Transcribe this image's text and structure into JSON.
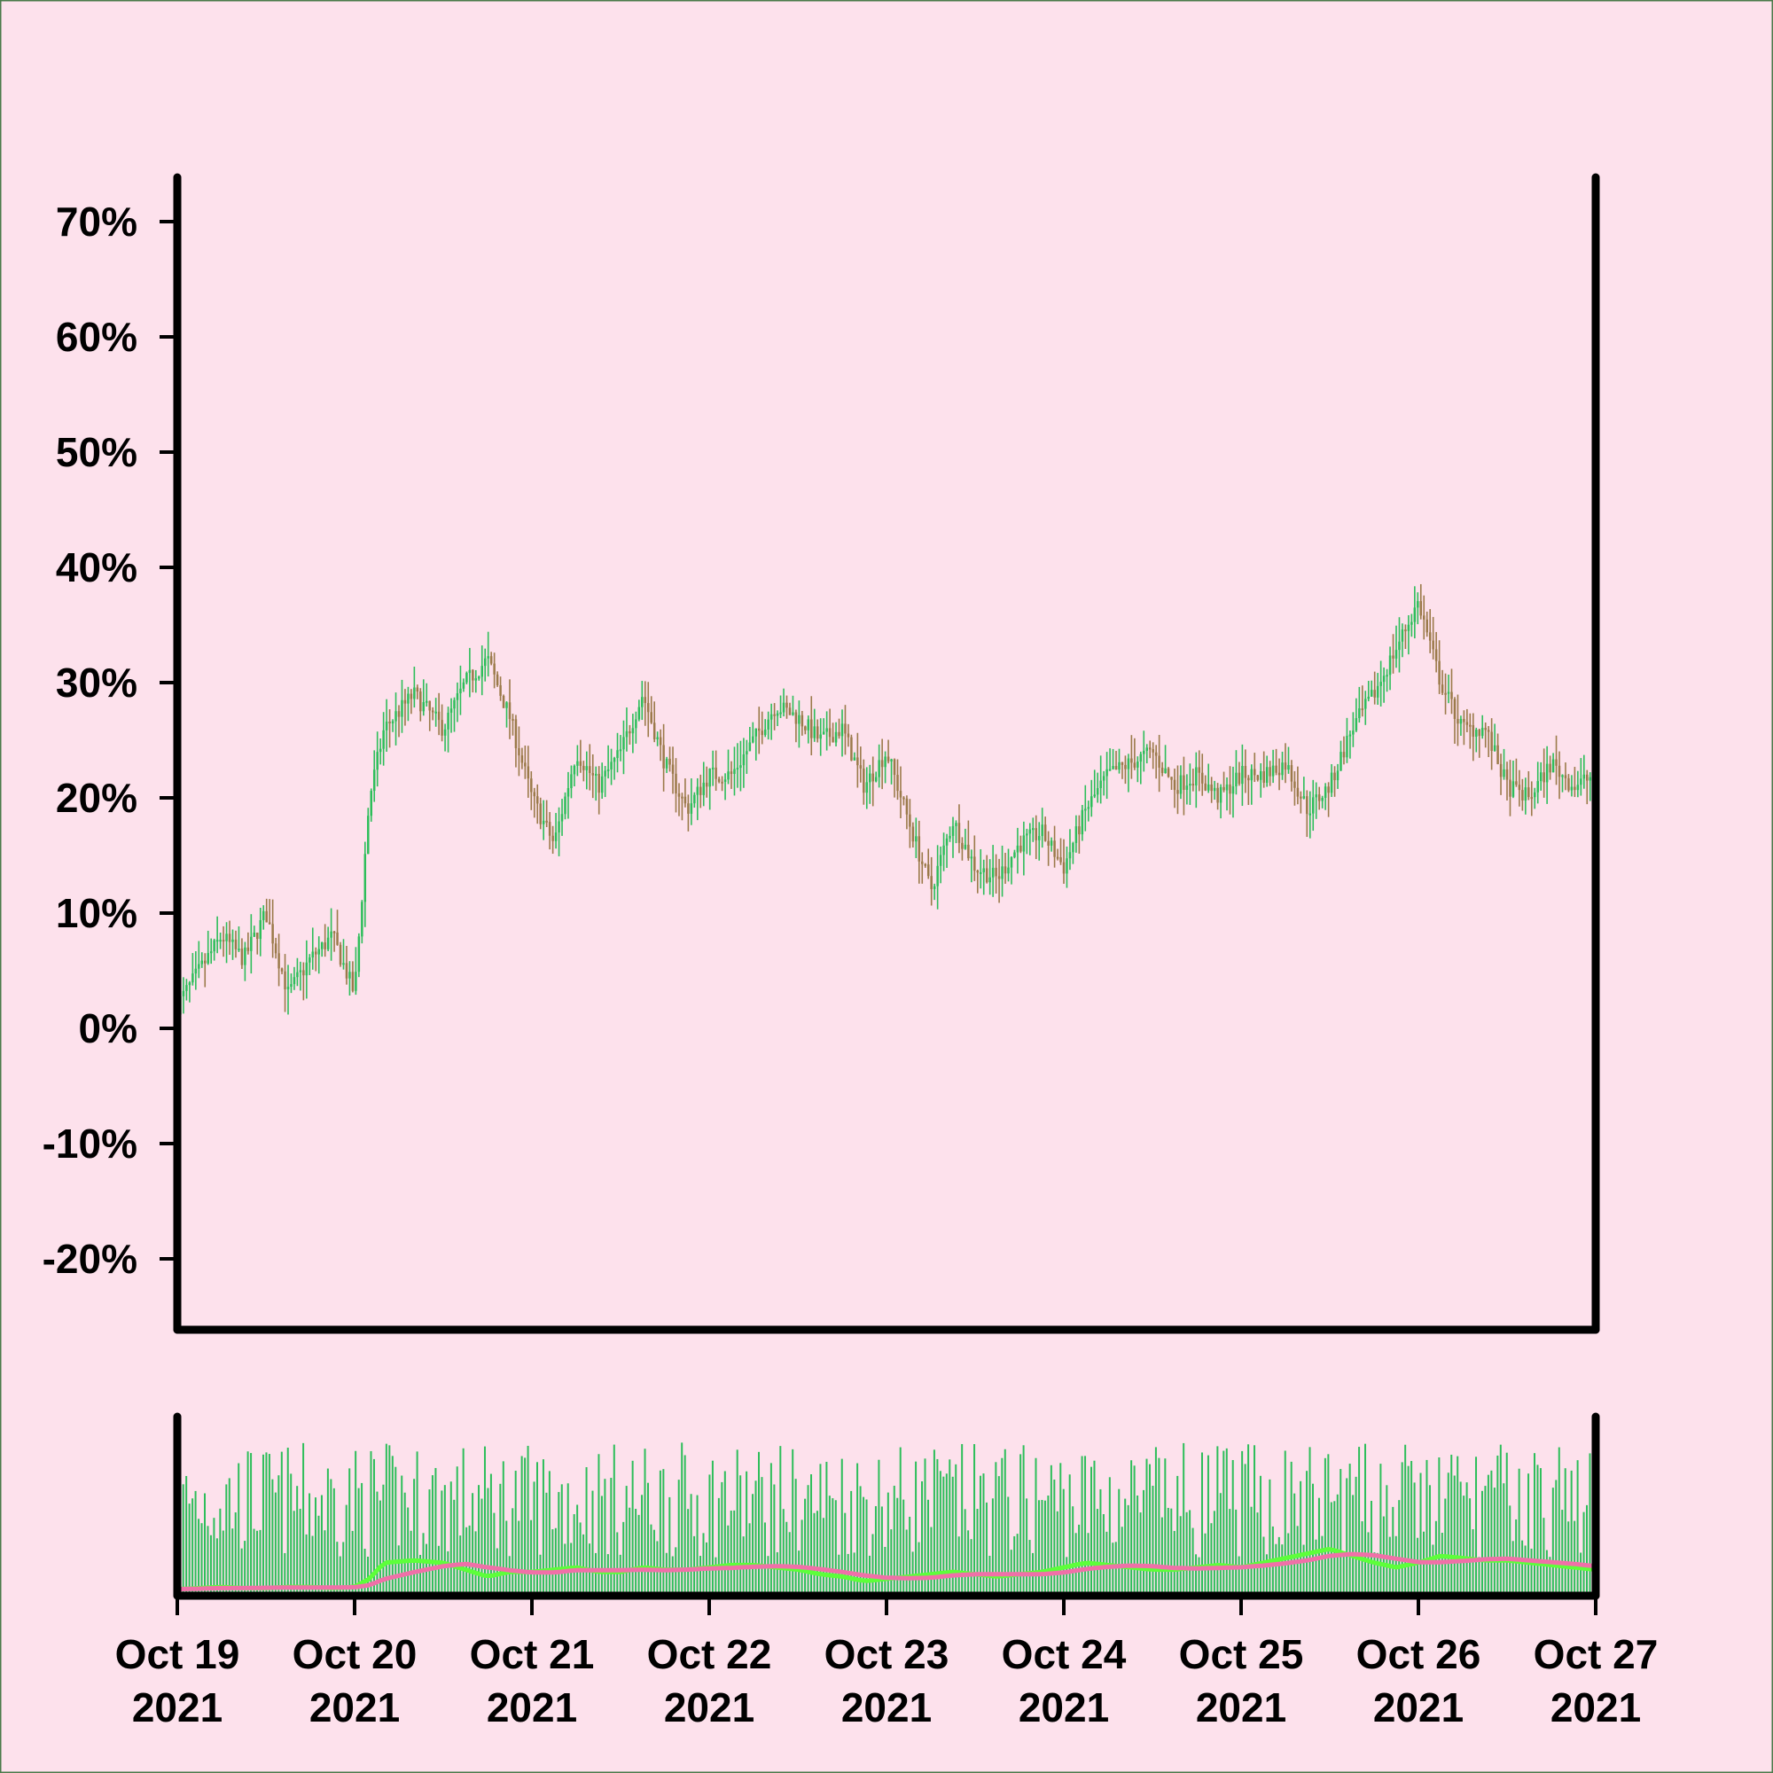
{
  "colors": {
    "background": "#fde1ec",
    "page_border": "#4a7a4a",
    "axis": "#000000",
    "up_candle": "#2dbe5a",
    "down_candle": "#9b7a4a",
    "volume_bar": "#2dbe5a",
    "volume_ma_fast": "#5dff3a",
    "volume_ma_slow": "#f070a8"
  },
  "chart_data": {
    "type": "candlestick",
    "title": "",
    "xlabel": "",
    "ylabel": "",
    "x_range": [
      "2021-10-19",
      "2021-10-27"
    ],
    "ylim": [
      -25,
      75
    ],
    "y_ticks": [
      {
        "value": 70,
        "label": "70%"
      },
      {
        "value": 60,
        "label": "60%"
      },
      {
        "value": 50,
        "label": "50%"
      },
      {
        "value": 40,
        "label": "40%"
      },
      {
        "value": 30,
        "label": "30%"
      },
      {
        "value": 20,
        "label": "20%"
      },
      {
        "value": 10,
        "label": "10%"
      },
      {
        "value": 0,
        "label": "0%"
      },
      {
        "value": -10,
        "label": "-10%"
      },
      {
        "value": -20,
        "label": "-20%"
      }
    ],
    "x_ticks": [
      {
        "date": "2021-10-19",
        "line1": "Oct 19",
        "line2": "2021"
      },
      {
        "date": "2021-10-20",
        "line1": "Oct 20",
        "line2": "2021"
      },
      {
        "date": "2021-10-21",
        "line1": "Oct 21",
        "line2": "2021"
      },
      {
        "date": "2021-10-22",
        "line1": "Oct 22",
        "line2": "2021"
      },
      {
        "date": "2021-10-23",
        "line1": "Oct 23",
        "line2": "2021"
      },
      {
        "date": "2021-10-24",
        "line1": "Oct 24",
        "line2": "2021"
      },
      {
        "date": "2021-10-25",
        "line1": "Oct 25",
        "line2": "2021"
      },
      {
        "date": "2021-10-26",
        "line1": "Oct 26",
        "line2": "2021"
      },
      {
        "date": "2021-10-27",
        "line1": "Oct 27",
        "line2": "2021"
      }
    ],
    "close_series": {
      "t": [
        "2021-10-19T00:00",
        "2021-10-19T03:00",
        "2021-10-19T06:00",
        "2021-10-19T09:00",
        "2021-10-19T12:00",
        "2021-10-19T15:00",
        "2021-10-19T18:00",
        "2021-10-19T21:00",
        "2021-10-20T00:00",
        "2021-10-20T02:00",
        "2021-10-20T04:00",
        "2021-10-20T08:00",
        "2021-10-20T12:00",
        "2021-10-20T15:00",
        "2021-10-20T18:00",
        "2021-10-20T21:00",
        "2021-10-21T00:00",
        "2021-10-21T03:00",
        "2021-10-21T06:00",
        "2021-10-21T09:00",
        "2021-10-21T12:00",
        "2021-10-21T15:00",
        "2021-10-21T18:00",
        "2021-10-21T21:00",
        "2021-10-22T00:00",
        "2021-10-22T03:00",
        "2021-10-22T06:00",
        "2021-10-22T09:00",
        "2021-10-22T12:00",
        "2021-10-22T15:00",
        "2021-10-22T18:00",
        "2021-10-22T21:00",
        "2021-10-23T00:00",
        "2021-10-23T03:00",
        "2021-10-23T06:00",
        "2021-10-23T09:00",
        "2021-10-23T12:00",
        "2021-10-23T15:00",
        "2021-10-23T18:00",
        "2021-10-23T21:00",
        "2021-10-24T00:00",
        "2021-10-24T03:00",
        "2021-10-24T06:00",
        "2021-10-24T09:00",
        "2021-10-24T12:00",
        "2021-10-24T15:00",
        "2021-10-24T18:00",
        "2021-10-24T21:00",
        "2021-10-25T00:00",
        "2021-10-25T03:00",
        "2021-10-25T06:00",
        "2021-10-25T09:00",
        "2021-10-25T12:00",
        "2021-10-25T15:00",
        "2021-10-25T18:00",
        "2021-10-25T21:00",
        "2021-10-26T00:00",
        "2021-10-26T03:00",
        "2021-10-26T06:00",
        "2021-10-26T09:00",
        "2021-10-26T12:00",
        "2021-10-26T15:00",
        "2021-10-26T18:00",
        "2021-10-26T21:00",
        "2021-10-27T00:00"
      ],
      "value": [
        2,
        5,
        8,
        6,
        10,
        3,
        6,
        8,
        3,
        20,
        26,
        29,
        26,
        30,
        32,
        27,
        20,
        16,
        24,
        21,
        24,
        29,
        23,
        19,
        22,
        22,
        25,
        28,
        27,
        25,
        26,
        21,
        24,
        18,
        12,
        18,
        14,
        13,
        16,
        17,
        14,
        19,
        22,
        23,
        24,
        21,
        22,
        20,
        22,
        22,
        23,
        19,
        21,
        26,
        29,
        33,
        37,
        30,
        26,
        26,
        21,
        20,
        23,
        21,
        22
      ],
      "vol_fast_ma": [
        0.5,
        1.0,
        1.5,
        1.0,
        1.0,
        1.5,
        1.5,
        1.0,
        1.5,
        5,
        12,
        13,
        12,
        9,
        6,
        8,
        8,
        9,
        10,
        8,
        8,
        10,
        9,
        9,
        10,
        11,
        11,
        10,
        9,
        7,
        6,
        4,
        5,
        6,
        7,
        8,
        7,
        6,
        7,
        8,
        10,
        12,
        11,
        10,
        9,
        9,
        10,
        11,
        10,
        12,
        14,
        16,
        18,
        15,
        12,
        10,
        12,
        15,
        14,
        13,
        13,
        12,
        11,
        10,
        9
      ]
    }
  }
}
